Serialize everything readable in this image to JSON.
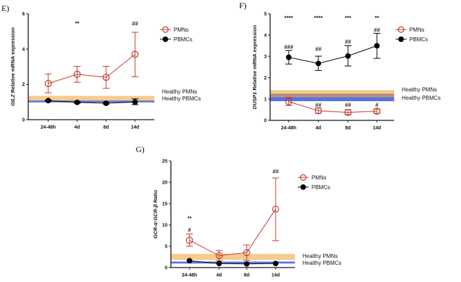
{
  "chart_data": [
    {
      "panel": "E)",
      "type": "line",
      "ylabel_italic": "GILZ",
      "ylabel_rest": " Relative mRNA expression",
      "categories": [
        "24-48h",
        "4d",
        "8d",
        "14d"
      ],
      "ylim": [
        0,
        6
      ],
      "yticks": [
        0,
        2,
        4,
        6
      ],
      "series": [
        {
          "name": "PMNs",
          "color": "#c0392b",
          "marker": "open-circle",
          "values": [
            2.05,
            2.57,
            2.4,
            3.7
          ],
          "err_low": [
            1.52,
            2.12,
            1.78,
            2.43
          ],
          "err_high": [
            2.58,
            3.02,
            3.02,
            4.95
          ]
        },
        {
          "name": "PBMCs",
          "color": "#000000",
          "marker": "filled-circle",
          "values": [
            1.08,
            0.98,
            0.93,
            1.0
          ],
          "err_low": [
            1.05,
            0.93,
            0.88,
            0.85
          ],
          "err_high": [
            1.11,
            1.03,
            0.98,
            1.18
          ]
        }
      ],
      "bands": [
        {
          "name": "Healthy PMNs",
          "color": "#f5c27a",
          "range": [
            1.05,
            1.35
          ]
        },
        {
          "name": "Healthy PBMCs",
          "color": "#3b5bdb",
          "range": [
            0.98,
            1.08
          ]
        }
      ],
      "annotations": [
        {
          "text": "**",
          "category": "4d",
          "y": 5.45
        },
        {
          "text": "##",
          "category": "14d",
          "y": 5.45
        }
      ],
      "legend": "top-right"
    },
    {
      "panel": "F)",
      "type": "line",
      "ylabel_italic": "DUSP1",
      "ylabel_rest": " Relative mRNA expression",
      "categories": [
        "24-48h",
        "4d",
        "8d",
        "14d"
      ],
      "ylim": [
        0,
        5
      ],
      "yticks": [
        0,
        1,
        2,
        3,
        4,
        5
      ],
      "series": [
        {
          "name": "PMNs",
          "color": "#c0392b",
          "marker": "open-circle",
          "values": [
            0.88,
            0.45,
            0.37,
            0.43
          ],
          "err_low": [
            0.7,
            0.33,
            0.27,
            0.33
          ],
          "err_high": [
            1.08,
            0.58,
            0.5,
            0.53
          ]
        },
        {
          "name": "PBMCs",
          "color": "#000000",
          "marker": "filled-circle",
          "values": [
            2.96,
            2.67,
            3.02,
            3.5
          ],
          "err_low": [
            2.64,
            2.34,
            2.55,
            2.91
          ],
          "err_high": [
            3.28,
            3.01,
            3.5,
            4.08
          ]
        }
      ],
      "bands": [
        {
          "name": "Healthy PMNs",
          "color": "#f5c27a",
          "range": [
            1.15,
            1.42
          ]
        },
        {
          "name": "",
          "color": "#a98274",
          "range": [
            1.07,
            1.25
          ]
        },
        {
          "name": "Healthy PBMCs",
          "color": "#3b5bdb",
          "range": [
            0.9,
            1.08
          ]
        }
      ],
      "annotations": [
        {
          "text": "****",
          "category": "24-48h",
          "y": 4.8
        },
        {
          "text": "****",
          "category": "4d",
          "y": 4.8
        },
        {
          "text": "***",
          "category": "8d",
          "y": 4.8
        },
        {
          "text": "**",
          "category": "14d",
          "y": 4.8
        },
        {
          "text": "###",
          "category": "24-48h",
          "y": 3.45
        },
        {
          "text": "##",
          "category": "4d",
          "y": 3.35
        },
        {
          "text": "##",
          "category": "8d",
          "y": 3.7
        },
        {
          "text": "##",
          "category": "14d",
          "y": 4.25
        },
        {
          "text": "##",
          "category": "4d",
          "y": 0.72
        },
        {
          "text": "##",
          "category": "8d",
          "y": 0.72
        },
        {
          "text": "#",
          "category": "14d",
          "y": 0.72
        }
      ],
      "legend": "top-right"
    },
    {
      "panel": "G)",
      "type": "line",
      "ylabel_italic": "GCR-α:GCR-β",
      "ylabel_rest": " Ratio",
      "categories": [
        "24-48h",
        "4d",
        "8d",
        "14d"
      ],
      "ylim": [
        0,
        25
      ],
      "yticks": [
        0,
        5,
        10,
        15,
        20,
        25
      ],
      "series": [
        {
          "name": "PMNs",
          "color": "#c0392b",
          "marker": "open-circle",
          "values": [
            6.4,
            2.8,
            3.5,
            13.7
          ],
          "err_low": [
            5.0,
            1.6,
            1.7,
            6.3
          ],
          "err_high": [
            7.9,
            4.0,
            5.3,
            21.0
          ]
        },
        {
          "name": "PBMCs",
          "color": "#000000",
          "marker": "filled-circle",
          "values": [
            1.6,
            0.95,
            0.85,
            0.95
          ],
          "err_low": [
            1.6,
            0.95,
            0.85,
            0.95
          ],
          "err_high": [
            1.6,
            0.95,
            0.85,
            0.95
          ]
        }
      ],
      "bands": [
        {
          "name": "Healthy PMNs",
          "color": "#f5c27a",
          "range": [
            1.8,
            3.2
          ]
        },
        {
          "name": "Healthy PBMCs",
          "color": "#3b5bdb",
          "range": [
            0.95,
            1.4
          ]
        }
      ],
      "annotations": [
        {
          "text": "**",
          "category": "24-48h",
          "y": 11.5
        },
        {
          "text": "#",
          "category": "24-48h",
          "y": 8.9
        },
        {
          "text": "##",
          "category": "14d",
          "y": 22.6
        }
      ],
      "legend": "top-right"
    }
  ]
}
